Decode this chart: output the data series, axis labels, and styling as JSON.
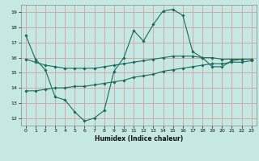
{
  "xlabel": "Humidex (Indice chaleur)",
  "background_color": "#c5e8e2",
  "grid_color": "#d4a0a0",
  "line_color": "#1a6b5a",
  "xlim": [
    -0.5,
    23.5
  ],
  "ylim": [
    11.5,
    19.5
  ],
  "yticks": [
    12,
    13,
    14,
    15,
    16,
    17,
    18,
    19
  ],
  "xticks": [
    0,
    1,
    2,
    3,
    4,
    5,
    6,
    7,
    8,
    9,
    10,
    11,
    12,
    13,
    14,
    15,
    16,
    17,
    18,
    19,
    20,
    21,
    22,
    23
  ],
  "line1_x": [
    0,
    1,
    2,
    3,
    4,
    5,
    6,
    7,
    8,
    9,
    10,
    11,
    12,
    13,
    14,
    15,
    16,
    17,
    18,
    19,
    20,
    21,
    22,
    23
  ],
  "line1_y": [
    17.5,
    15.9,
    15.2,
    13.4,
    13.2,
    12.4,
    11.8,
    12.0,
    12.5,
    15.1,
    16.0,
    17.8,
    17.1,
    18.2,
    19.1,
    19.2,
    18.8,
    16.4,
    16.0,
    15.4,
    15.4,
    15.8,
    15.9,
    15.9
  ],
  "line1_marker_x": [
    0,
    1,
    2,
    3,
    4,
    5,
    6,
    7,
    8,
    9,
    10,
    11,
    12,
    13,
    14,
    15,
    16,
    17,
    18,
    19,
    20,
    21,
    22,
    23
  ],
  "line1_marker_y": [
    17.5,
    15.9,
    15.2,
    13.4,
    13.2,
    12.4,
    11.8,
    12.0,
    12.5,
    15.1,
    16.0,
    17.8,
    17.1,
    18.2,
    19.1,
    19.2,
    18.8,
    16.4,
    16.0,
    15.4,
    15.4,
    15.8,
    15.9,
    15.9
  ],
  "line2_x": [
    0,
    1,
    2,
    3,
    4,
    5,
    6,
    7,
    8,
    9,
    10,
    11,
    12,
    13,
    14,
    15,
    16,
    17,
    18,
    19,
    20,
    21,
    22,
    23
  ],
  "line2_y": [
    15.9,
    15.7,
    15.5,
    15.4,
    15.3,
    15.3,
    15.3,
    15.3,
    15.4,
    15.5,
    15.6,
    15.7,
    15.8,
    15.9,
    16.0,
    16.1,
    16.1,
    16.1,
    16.0,
    16.0,
    15.9,
    15.9,
    15.9,
    15.9
  ],
  "line3_x": [
    0,
    1,
    2,
    3,
    4,
    5,
    6,
    7,
    8,
    9,
    10,
    11,
    12,
    13,
    14,
    15,
    16,
    17,
    18,
    19,
    20,
    21,
    22,
    23
  ],
  "line3_y": [
    13.8,
    13.8,
    13.9,
    14.0,
    14.0,
    14.1,
    14.1,
    14.2,
    14.3,
    14.4,
    14.5,
    14.7,
    14.8,
    14.9,
    15.1,
    15.2,
    15.3,
    15.4,
    15.5,
    15.6,
    15.6,
    15.7,
    15.7,
    15.8
  ]
}
